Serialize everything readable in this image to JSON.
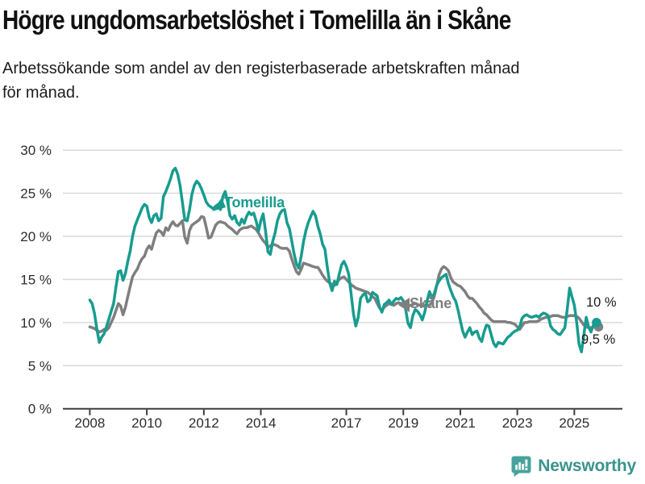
{
  "footer": {
    "brand": "Newsworthy"
  },
  "chart_data": {
    "type": "line",
    "title": "Högre ungdomsarbetslöshet i Tomelilla än i Skåne",
    "subtitle_lines": [
      "Arbetssökande som andel av den registerbaserade arbetskraften månad",
      "för månad."
    ],
    "x_unit": "month",
    "x_start": "2008-01",
    "x_end": "2025-10",
    "ylim": [
      0,
      30
    ],
    "grid": true,
    "legend_position": "inline-annotations",
    "yticks": [
      {
        "value": 0,
        "label": "0 %"
      },
      {
        "value": 5,
        "label": "5 %"
      },
      {
        "value": 10,
        "label": "10 %"
      },
      {
        "value": 15,
        "label": "15 %"
      },
      {
        "value": 20,
        "label": "20 %"
      },
      {
        "value": 25,
        "label": "25 %"
      },
      {
        "value": 30,
        "label": "30 %"
      }
    ],
    "xticks": [
      {
        "value": 2008,
        "label": "2008"
      },
      {
        "value": 2010,
        "label": "2010"
      },
      {
        "value": 2012,
        "label": "2012"
      },
      {
        "value": 2014,
        "label": "2014"
      },
      {
        "value": 2017,
        "label": "2017"
      },
      {
        "value": 2019,
        "label": "2019"
      },
      {
        "value": 2021,
        "label": "2021"
      },
      {
        "value": 2023,
        "label": "2023"
      },
      {
        "value": 2025,
        "label": "2025"
      }
    ],
    "series": [
      {
        "name": "Tomelilla",
        "color": "#189C8F",
        "end_label": "10 %",
        "start_year": 2008,
        "monthly_values": [
          12.6,
          12.2,
          11.0,
          9.2,
          7.7,
          8.3,
          8.7,
          9.5,
          10.4,
          11.3,
          12.2,
          14.1,
          15.9,
          16.0,
          14.9,
          15.7,
          17.1,
          18.3,
          20.0,
          21.2,
          21.9,
          22.6,
          23.3,
          23.7,
          23.5,
          22.2,
          21.6,
          22.4,
          22.6,
          21.8,
          22.1,
          24.6,
          25.2,
          25.9,
          26.7,
          27.6,
          27.9,
          27.2,
          25.9,
          23.9,
          21.9,
          21.8,
          23.1,
          24.9,
          25.9,
          26.4,
          26.1,
          25.5,
          24.8,
          24.0,
          23.6,
          23.4,
          23.2,
          23.5,
          23.7,
          23.1,
          24.6,
          25.2,
          24.0,
          22.4,
          22.0,
          22.4,
          21.6,
          21.3,
          22.0,
          21.5,
          22.3,
          22.8,
          22.5,
          22.7,
          21.8,
          20.6,
          21.8,
          22.6,
          20.6,
          18.2,
          17.9,
          19.4,
          20.4,
          21.8,
          22.6,
          23.0,
          23.1,
          21.6,
          20.9,
          19.5,
          18.0,
          16.8,
          16.3,
          17.7,
          19.4,
          20.7,
          21.6,
          22.3,
          22.9,
          22.4,
          21.2,
          20.3,
          19.1,
          18.5,
          16.4,
          14.6,
          13.7,
          14.8,
          14.4,
          15.6,
          16.7,
          17.1,
          16.5,
          15.6,
          13.4,
          11.0,
          9.6,
          10.6,
          12.8,
          13.2,
          13.4,
          12.4,
          12.6,
          13.5,
          13.3,
          13.1,
          11.8,
          11.2,
          12.1,
          12.3,
          12.6,
          12.1,
          12.5,
          12.8,
          12.7,
          12.9,
          12.5,
          11.5,
          9.9,
          9.4,
          10.8,
          11.5,
          11.3,
          10.9,
          10.3,
          11.2,
          12.5,
          13.6,
          12.9,
          13.3,
          14.3,
          14.8,
          15.2,
          15.4,
          15.6,
          14.5,
          13.7,
          13.0,
          12.5,
          11.5,
          10.2,
          9.0,
          8.3,
          8.9,
          9.4,
          8.6,
          8.9,
          9.0,
          8.2,
          7.8,
          8.9,
          9.7,
          9.6,
          8.6,
          7.6,
          7.2,
          7.7,
          7.6,
          7.5,
          7.9,
          8.3,
          8.5,
          8.8,
          9.0,
          9.1,
          9.5,
          10.5,
          10.8,
          10.9,
          10.7,
          10.6,
          10.7,
          10.8,
          10.6,
          10.9,
          11.1,
          11.0,
          10.8,
          9.6,
          9.2,
          9.0,
          8.7,
          8.6,
          9.0,
          9.4,
          11.5,
          14.0,
          13.0,
          12.0,
          10.0,
          7.5,
          6.6,
          8.5,
          10.6,
          9.5,
          8.9,
          9.7,
          10.0
        ]
      },
      {
        "name": "Skåne",
        "color": "#7F7F7F",
        "end_label": "9,5 %",
        "start_year": 2008,
        "monthly_values": [
          9.5,
          9.4,
          9.3,
          9.1,
          8.9,
          9.0,
          9.2,
          9.1,
          9.4,
          10.0,
          10.6,
          11.4,
          12.2,
          11.9,
          10.9,
          11.8,
          13.0,
          14.2,
          15.3,
          15.8,
          16.2,
          16.9,
          17.4,
          17.7,
          18.5,
          18.9,
          18.5,
          19.5,
          20.4,
          20.7,
          20.5,
          20.1,
          21.0,
          20.7,
          21.3,
          21.7,
          21.3,
          21.2,
          21.5,
          21.8,
          19.9,
          19.2,
          20.7,
          21.3,
          21.5,
          21.7,
          21.9,
          22.3,
          22.2,
          21.1,
          19.8,
          19.9,
          20.6,
          21.3,
          21.6,
          21.7,
          21.6,
          21.5,
          21.2,
          21.0,
          20.8,
          20.5,
          20.3,
          20.7,
          20.9,
          21.0,
          21.0,
          21.1,
          21.2,
          21.0,
          20.8,
          20.4,
          19.9,
          19.5,
          19.2,
          18.7,
          18.9,
          19.1,
          19.0,
          18.9,
          18.7,
          18.6,
          18.6,
          18.6,
          18.3,
          17.4,
          16.6,
          15.9,
          15.6,
          16.2,
          16.9,
          16.8,
          16.7,
          16.6,
          16.5,
          16.4,
          16.4,
          16.0,
          15.5,
          15.1,
          14.8,
          14.6,
          14.4,
          14.3,
          14.6,
          15.0,
          15.2,
          15.3,
          15.0,
          14.7,
          14.4,
          14.2,
          14.0,
          13.9,
          13.8,
          13.7,
          13.6,
          13.5,
          13.3,
          13.0,
          12.8,
          12.2,
          11.7,
          11.4,
          11.8,
          12.0,
          12.2,
          12.1,
          12.0,
          12.2,
          12.3,
          12.2,
          12.2,
          12.0,
          11.9,
          12.0,
          12.1,
          12.2,
          12.1,
          12.0,
          11.9,
          11.9,
          12.0,
          12.0,
          12.3,
          13.0,
          14.2,
          15.5,
          16.2,
          16.5,
          16.3,
          16.0,
          15.2,
          14.7,
          14.5,
          14.3,
          14.2,
          13.9,
          13.6,
          13.1,
          12.8,
          12.8,
          12.5,
          12.2,
          11.8,
          11.5,
          11.1,
          10.9,
          10.6,
          10.3,
          10.1,
          10.1,
          10.1,
          10.1,
          10.1,
          10.1,
          10.0,
          10.0,
          9.9,
          9.8,
          9.5,
          9.2,
          9.6,
          10.0,
          10.0,
          10.1,
          10.1,
          10.1,
          10.1,
          10.2,
          10.4,
          10.5,
          10.6,
          10.6,
          10.7,
          10.8,
          10.8,
          10.8,
          10.7,
          10.6,
          10.6,
          10.7,
          10.8,
          10.8,
          10.8,
          10.7,
          10.5,
          10.1,
          9.7,
          9.5,
          9.4,
          9.4,
          9.5,
          9.5
        ]
      }
    ]
  }
}
